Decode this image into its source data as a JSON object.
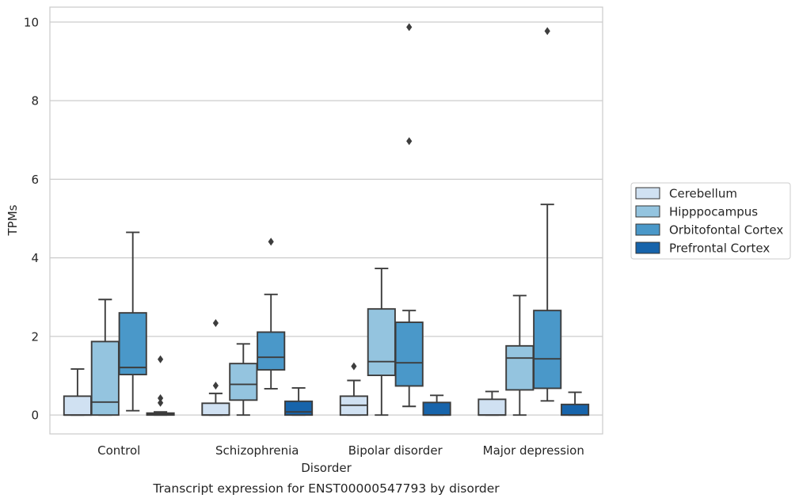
{
  "chart_data": {
    "type": "box",
    "caption": "Transcript expression for ENST00000547793 by disorder",
    "xlabel": "Disorder",
    "ylabel": "TPMs",
    "ylim": [
      -0.48,
      10.38
    ],
    "yticks": [
      0,
      2,
      4,
      6,
      8,
      10
    ],
    "categories": [
      "Control",
      "Schizophrenia",
      "Bipolar disorder",
      "Major depression"
    ],
    "grid": "horizontal",
    "legend_position": "right",
    "series": [
      {
        "name": "Cerebellum",
        "color": "#d0e1f2",
        "boxes": [
          {
            "whislo": 0.0,
            "q1": 0.0,
            "med": 0.0,
            "q3": 0.48,
            "whishi": 1.17,
            "fliers": []
          },
          {
            "whislo": 0.0,
            "q1": 0.0,
            "med": 0.0,
            "q3": 0.3,
            "whishi": 0.55,
            "fliers": [
              0.75,
              2.34
            ]
          },
          {
            "whislo": 0.0,
            "q1": 0.0,
            "med": 0.25,
            "q3": 0.48,
            "whishi": 0.88,
            "fliers": [
              1.24
            ]
          },
          {
            "whislo": 0.0,
            "q1": 0.0,
            "med": 0.0,
            "q3": 0.4,
            "whishi": 0.6,
            "fliers": []
          }
        ]
      },
      {
        "name": "Hipppocampus",
        "color": "#94c4df",
        "boxes": [
          {
            "whislo": 0.0,
            "q1": 0.0,
            "med": 0.33,
            "q3": 1.87,
            "whishi": 2.94,
            "fliers": []
          },
          {
            "whislo": 0.0,
            "q1": 0.38,
            "med": 0.78,
            "q3": 1.31,
            "whishi": 1.81,
            "fliers": []
          },
          {
            "whislo": 0.0,
            "q1": 1.01,
            "med": 1.36,
            "q3": 2.7,
            "whishi": 3.73,
            "fliers": []
          },
          {
            "whislo": 0.0,
            "q1": 0.64,
            "med": 1.45,
            "q3": 1.76,
            "whishi": 3.04,
            "fliers": []
          }
        ]
      },
      {
        "name": "Orbitofontal Cortex",
        "color": "#4a98c9",
        "boxes": [
          {
            "whislo": 0.11,
            "q1": 1.03,
            "med": 1.21,
            "q3": 2.6,
            "whishi": 4.65,
            "fliers": []
          },
          {
            "whislo": 0.67,
            "q1": 1.15,
            "med": 1.47,
            "q3": 2.11,
            "whishi": 3.07,
            "fliers": [
              4.41
            ]
          },
          {
            "whislo": 0.22,
            "q1": 0.74,
            "med": 1.33,
            "q3": 2.36,
            "whishi": 2.66,
            "fliers": [
              6.97,
              9.87
            ]
          },
          {
            "whislo": 0.36,
            "q1": 0.68,
            "med": 1.43,
            "q3": 2.66,
            "whishi": 5.36,
            "fliers": [
              9.77
            ]
          }
        ]
      },
      {
        "name": "Prefrontal Cortex",
        "color": "#1764ab",
        "boxes": [
          {
            "whislo": 0.0,
            "q1": 0.0,
            "med": 0.02,
            "q3": 0.05,
            "whishi": 0.08,
            "fliers": [
              0.31,
              0.43,
              1.42
            ]
          },
          {
            "whislo": 0.0,
            "q1": 0.0,
            "med": 0.08,
            "q3": 0.35,
            "whishi": 0.69,
            "fliers": []
          },
          {
            "whislo": 0.0,
            "q1": 0.0,
            "med": 0.0,
            "q3": 0.32,
            "whishi": 0.5,
            "fliers": []
          },
          {
            "whislo": 0.0,
            "q1": 0.0,
            "med": 0.0,
            "q3": 0.27,
            "whishi": 0.58,
            "fliers": []
          }
        ]
      }
    ]
  }
}
